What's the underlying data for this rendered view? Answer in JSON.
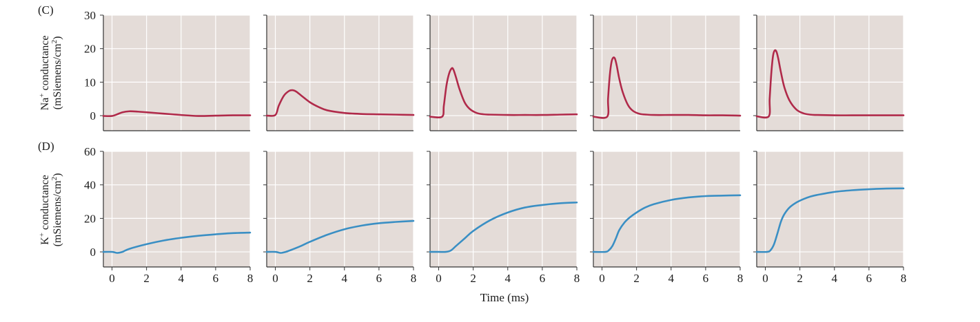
{
  "figure": {
    "xlabel": "Time (ms)"
  },
  "chart_data": [
    {
      "type": "line",
      "panel_label": "(C)",
      "ylabel_lines": [
        "Na",
        "+",
        " conductance",
        "(mSiemens/cm",
        "2",
        ")"
      ],
      "xlim": [
        -0.5,
        8
      ],
      "ylim": [
        -4.5,
        30
      ],
      "yticks": [
        0,
        10,
        20,
        30
      ],
      "xticks": [
        0,
        2,
        4,
        6,
        8
      ],
      "grid": true,
      "line_color": "#b02a4a",
      "series": [
        {
          "x": [
            -0.5,
            0,
            0.3,
            0.6,
            1.0,
            1.5,
            2,
            3,
            4,
            5,
            6,
            7,
            8
          ],
          "y": [
            -0.1,
            -0.1,
            0.4,
            1.0,
            1.3,
            1.2,
            1.0,
            0.6,
            0.2,
            -0.1,
            0.0,
            0.1,
            0.1
          ]
        },
        {
          "x": [
            -0.5,
            0,
            0.2,
            0.5,
            0.8,
            1.0,
            1.2,
            1.5,
            2,
            2.5,
            3,
            4,
            5,
            6,
            7,
            8
          ],
          "y": [
            0,
            0.2,
            3.0,
            6.0,
            7.4,
            7.6,
            7.2,
            6.0,
            4.0,
            2.6,
            1.6,
            0.8,
            0.5,
            0.4,
            0.3,
            0.2
          ]
        },
        {
          "x": [
            -0.5,
            0.2,
            0.3,
            0.45,
            0.6,
            0.75,
            0.85,
            1.0,
            1.2,
            1.5,
            1.8,
            2.2,
            2.6,
            3,
            4,
            5,
            6,
            7,
            8
          ],
          "y": [
            -0.3,
            -0.3,
            3.0,
            9.0,
            12.5,
            14.1,
            13.8,
            11.5,
            8.0,
            4.0,
            2.0,
            0.8,
            0.4,
            0.3,
            0.2,
            0.2,
            0.2,
            0.3,
            0.4
          ]
        },
        {
          "x": [
            -0.5,
            0.3,
            0.35,
            0.45,
            0.55,
            0.65,
            0.75,
            0.85,
            1.0,
            1.2,
            1.5,
            1.8,
            2.2,
            2.6,
            3,
            4,
            5,
            6,
            7,
            8
          ],
          "y": [
            -0.3,
            -0.3,
            5.0,
            12.0,
            16.0,
            17.3,
            17.0,
            15.0,
            11.0,
            7.0,
            3.2,
            1.4,
            0.5,
            0.3,
            0.2,
            0.2,
            0.2,
            0.1,
            0.1,
            0.0
          ]
        },
        {
          "x": [
            -0.5,
            0.2,
            0.25,
            0.35,
            0.45,
            0.55,
            0.65,
            0.75,
            0.9,
            1.1,
            1.4,
            1.8,
            2.2,
            2.6,
            3,
            4,
            5,
            6,
            7,
            8
          ],
          "y": [
            -0.2,
            -0.2,
            5.0,
            13.0,
            18.0,
            19.5,
            19.0,
            17.0,
            13.0,
            8.5,
            4.5,
            1.8,
            0.7,
            0.3,
            0.2,
            0.1,
            0.1,
            0.1,
            0.1,
            0.1
          ]
        }
      ]
    },
    {
      "type": "line",
      "panel_label": "(D)",
      "ylabel_lines": [
        "K",
        "+",
        " conductance",
        "(mSiemens/cm",
        "2",
        ")"
      ],
      "xlim": [
        -0.5,
        8
      ],
      "ylim": [
        -9,
        60
      ],
      "yticks": [
        0,
        20,
        40,
        60
      ],
      "xticks": [
        0,
        2,
        4,
        6,
        8
      ],
      "grid": true,
      "line_color": "#3a8fc4",
      "series": [
        {
          "x": [
            -0.5,
            0,
            0.3,
            0.6,
            1,
            2,
            3,
            4,
            5,
            6,
            7,
            8
          ],
          "y": [
            0,
            0,
            -0.6,
            0,
            1.8,
            4.6,
            6.8,
            8.4,
            9.6,
            10.5,
            11.2,
            11.5
          ]
        },
        {
          "x": [
            -0.5,
            0,
            0.3,
            0.6,
            1,
            1.5,
            2,
            3,
            4,
            5,
            6,
            7,
            8
          ],
          "y": [
            0,
            0,
            -0.6,
            0,
            1.5,
            3.6,
            6.0,
            10.2,
            13.5,
            15.7,
            17.1,
            17.9,
            18.5
          ]
        },
        {
          "x": [
            -0.5,
            0,
            0.4,
            0.7,
            1,
            1.5,
            2,
            3,
            4,
            5,
            6,
            7,
            8
          ],
          "y": [
            0,
            0,
            0,
            0.8,
            3.5,
            8.0,
            12.5,
            19.0,
            23.5,
            26.5,
            28.0,
            29.0,
            29.5
          ]
        },
        {
          "x": [
            -0.5,
            0.2,
            0.4,
            0.6,
            0.8,
            1,
            1.3,
            1.6,
            2,
            2.5,
            3,
            4,
            5,
            6,
            7,
            8
          ],
          "y": [
            0,
            0,
            1.0,
            3.5,
            8.0,
            13.0,
            17.5,
            20.5,
            23.5,
            26.5,
            28.5,
            31.0,
            32.5,
            33.3,
            33.6,
            33.8
          ]
        },
        {
          "x": [
            -0.5,
            0.1,
            0.3,
            0.5,
            0.7,
            0.9,
            1.1,
            1.4,
            1.8,
            2.2,
            2.6,
            3,
            4,
            5,
            6,
            7,
            8
          ],
          "y": [
            0,
            0,
            1.0,
            4.5,
            11.0,
            18.0,
            22.5,
            26.5,
            29.5,
            31.5,
            33.0,
            34.0,
            35.8,
            36.8,
            37.4,
            37.8,
            37.9
          ]
        }
      ]
    }
  ]
}
